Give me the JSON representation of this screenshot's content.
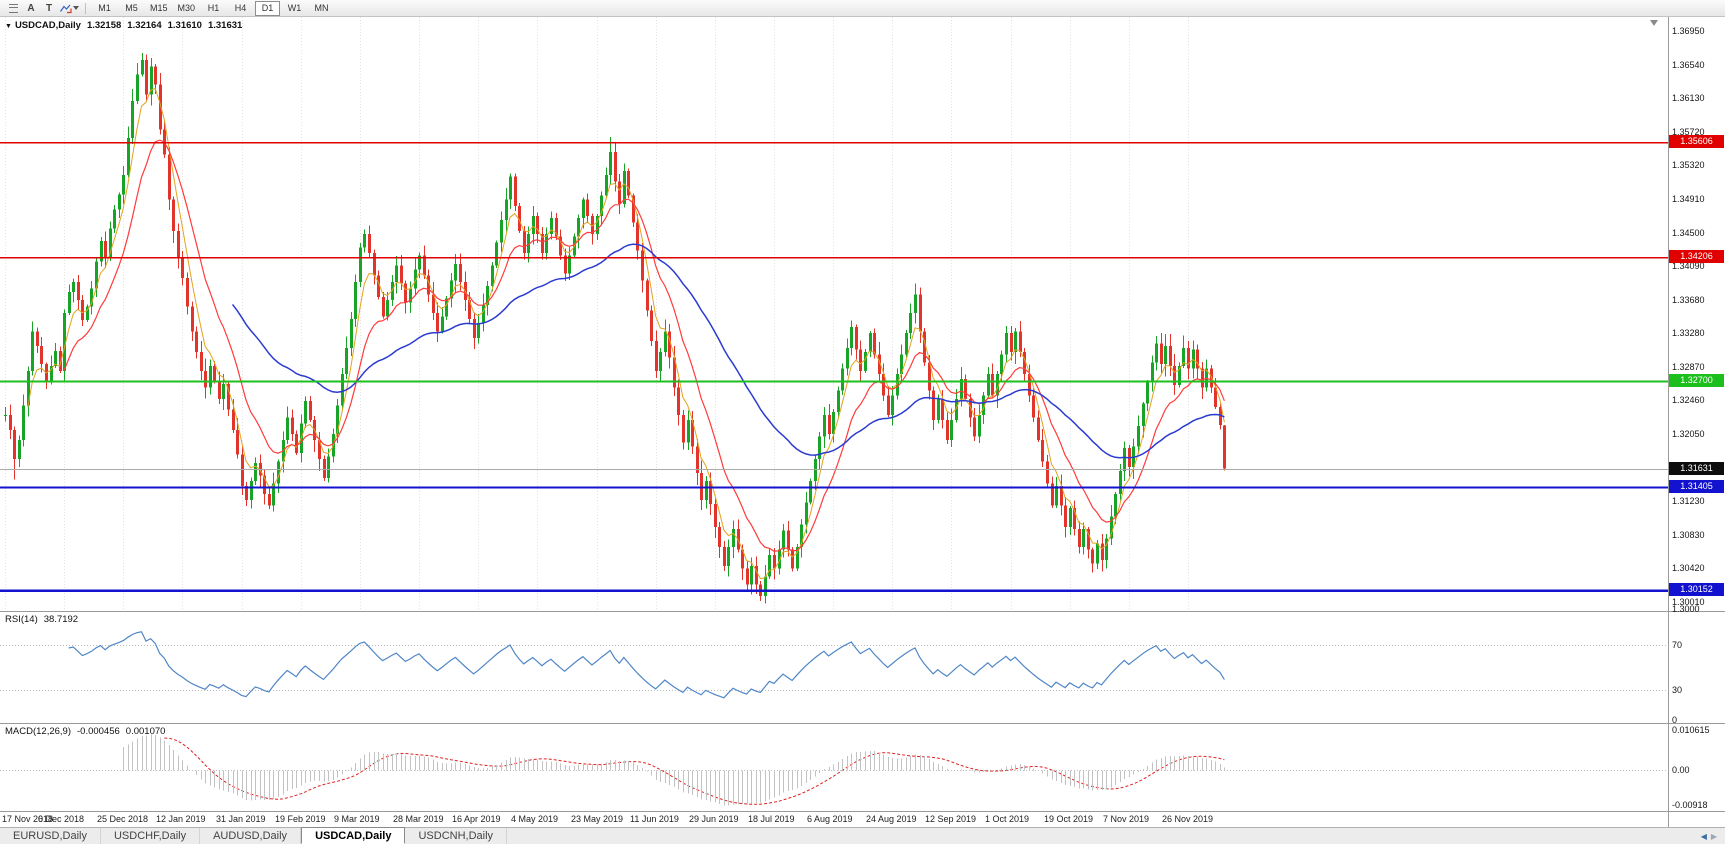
{
  "toolbar": {
    "icons": [
      {
        "name": "menu-icon"
      },
      {
        "name": "text-a-button",
        "glyph": "A"
      },
      {
        "name": "text-t-button",
        "glyph": "T"
      },
      {
        "name": "cursor-arrows-button"
      },
      {
        "name": "dropdown-caret-icon"
      }
    ],
    "timeframes": [
      "M1",
      "M5",
      "M15",
      "M30",
      "H1",
      "H4",
      "D1",
      "W1",
      "MN"
    ],
    "active_timeframe": "D1"
  },
  "chart": {
    "symbol_with_tf": "USDCAD,Daily",
    "collapse_glyph": "▼"
  },
  "chart_data": {
    "type": "candlestick",
    "symbol": "USDCAD",
    "period": "Daily",
    "last_bar": {
      "open": "1.32158",
      "high": "1.32164",
      "low": "1.31610",
      "close": "1.31631"
    },
    "closes": [
      1.3228,
      1.321,
      1.3175,
      1.3198,
      1.324,
      1.3282,
      1.333,
      1.3312,
      1.329,
      1.3268,
      1.3288,
      1.3306,
      1.3282,
      1.3352,
      1.3378,
      1.339,
      1.3368,
      1.3344,
      1.336,
      1.3382,
      1.3415,
      1.344,
      1.342,
      1.3455,
      1.3478,
      1.3496,
      1.352,
      1.3565,
      1.361,
      1.3642,
      1.366,
      1.3618,
      1.3652,
      1.363,
      1.3575,
      1.3545,
      1.349,
      1.3452,
      1.342,
      1.3395,
      1.336,
      1.333,
      1.3305,
      1.3282,
      1.3262,
      1.3288,
      1.327,
      1.3248,
      1.3266,
      1.3235,
      1.321,
      1.318,
      1.3142,
      1.3125,
      1.3148,
      1.317,
      1.3155,
      1.3132,
      1.3118,
      1.3145,
      1.3172,
      1.3198,
      1.3225,
      1.3205,
      1.3182,
      1.3218,
      1.3245,
      1.3222,
      1.3198,
      1.3175,
      1.3152,
      1.3178,
      1.3205,
      1.324,
      1.3278,
      1.331,
      1.3345,
      1.339,
      1.3432,
      1.3448,
      1.3425,
      1.3398,
      1.3372,
      1.3348,
      1.3368,
      1.339,
      1.341,
      1.3388,
      1.3365,
      1.3382,
      1.3405,
      1.3422,
      1.3398,
      1.3375,
      1.3352,
      1.333,
      1.3348,
      1.337,
      1.3392,
      1.3412,
      1.339,
      1.3368,
      1.3345,
      1.3322,
      1.334,
      1.3362,
      1.3385,
      1.341,
      1.3438,
      1.3465,
      1.349,
      1.3518,
      1.3482,
      1.3452,
      1.3425,
      1.3448,
      1.347,
      1.3448,
      1.3425,
      1.3448,
      1.3468,
      1.3445,
      1.3422,
      1.34,
      1.3422,
      1.3445,
      1.3468,
      1.349,
      1.347,
      1.3448,
      1.347,
      1.3495,
      1.352,
      1.3548,
      1.3512,
      1.3485,
      1.3525,
      1.3495,
      1.3462,
      1.3428,
      1.3392,
      1.3355,
      1.3318,
      1.3282,
      1.3305,
      1.333,
      1.3298,
      1.3262,
      1.3228,
      1.3195,
      1.3222,
      1.319,
      1.3158,
      1.3125,
      1.3148,
      1.312,
      1.3092,
      1.3068,
      1.3045,
      1.3068,
      1.309,
      1.3065,
      1.3042,
      1.3022,
      1.3045,
      1.3022,
      1.3008,
      1.3032,
      1.3058,
      1.3042,
      1.3065,
      1.3088,
      1.3065,
      1.3042,
      1.3068,
      1.3095,
      1.3122,
      1.3148,
      1.3175,
      1.3202,
      1.3228,
      1.3205,
      1.3232,
      1.3258,
      1.3285,
      1.331,
      1.3335,
      1.3308,
      1.3282,
      1.3305,
      1.3328,
      1.3302,
      1.3278,
      1.3252,
      1.3228,
      1.3252,
      1.3278,
      1.3302,
      1.3328,
      1.3352,
      1.3375,
      1.333,
      1.3292,
      1.3258,
      1.3222,
      1.3248,
      1.3222,
      1.3198,
      1.3222,
      1.3248,
      1.3272,
      1.3248,
      1.3225,
      1.3202,
      1.3228,
      1.3252,
      1.3278,
      1.3252,
      1.3278,
      1.3302,
      1.3328,
      1.3305,
      1.333,
      1.3305,
      1.3278,
      1.3252,
      1.3225,
      1.3198,
      1.3172,
      1.3145,
      1.3118,
      1.3142,
      1.3118,
      1.3092,
      1.3115,
      1.309,
      1.3068,
      1.309,
      1.3065,
      1.3048,
      1.3072,
      1.3052,
      1.3078,
      1.3105,
      1.3132,
      1.316,
      1.3188,
      1.3165,
      1.319,
      1.3215,
      1.3242,
      1.3268,
      1.3292,
      1.3315,
      1.329,
      1.3312,
      1.3288,
      1.3265,
      1.3288,
      1.331,
      1.3285,
      1.3308,
      1.3285,
      1.3262,
      1.3285,
      1.3262,
      1.3238,
      1.3216,
      1.31631
    ],
    "wick_overrides": {
      "2": {
        "low": 1.315
      },
      "30": {
        "high": 1.3668
      },
      "111": {
        "high": 1.3522
      },
      "133": {
        "high": 1.3566
      },
      "166": {
        "low": 1.3002
      }
    },
    "price_axis_labels": [
      "1.36950",
      "1.36540",
      "1.36130",
      "1.35720",
      "1.35320",
      "1.34910",
      "1.34500",
      "1.34090",
      "1.33680",
      "1.33280",
      "1.32870",
      "1.32460",
      "1.32050",
      "1.31640",
      "1.31230",
      "1.30830",
      "1.30420",
      "1.30010"
    ],
    "price_axis_bottom_label": "1.3000",
    "x_axis_labels": [
      "17 Nov 2018",
      "6 Dec 2018",
      "25 Dec 2018",
      "12 Jan 2019",
      "31 Jan 2019",
      "19 Feb 2019",
      "9 Mar 2019",
      "28 Mar 2019",
      "16 Apr 2019",
      "4 May 2019",
      "23 May 2019",
      "11 Jun 2019",
      "29 Jun 2019",
      "18 Jul 2019",
      "6 Aug 2019",
      "24 Aug 2019",
      "12 Sep 2019",
      "1 Oct 2019",
      "19 Oct 2019",
      "7 Nov 2019",
      "26 Nov 2019"
    ],
    "bars_per_gridline": 13,
    "candle_colors": {
      "up": "#17a427",
      "down": "#e3342c"
    },
    "moving_averages": [
      {
        "name": "fast-ma",
        "period": 5,
        "color": "#e2a31e",
        "width": 1
      },
      {
        "name": "mid-ma",
        "period": 13,
        "color": "#ff3b3b",
        "width": 1.2
      },
      {
        "name": "slow-ma",
        "period": 50,
        "color": "#2b3bd0",
        "width": 1.5
      }
    ],
    "horizontal_lines": [
      {
        "label": "1.35606",
        "price": 1.35606,
        "color": "#e00000",
        "width": 1.5
      },
      {
        "label": "1.34206",
        "price": 1.34206,
        "color": "#e00000",
        "width": 1.5
      },
      {
        "label": "1.32700",
        "price": 1.327,
        "color": "#1dbf1d",
        "width": 2
      },
      {
        "label": "1.31405",
        "price": 1.31405,
        "color": "#1212cf",
        "width": 2
      },
      {
        "label": "1.30152",
        "price": 1.30152,
        "color": "#1212cf",
        "width": 2.5
      }
    ],
    "current_price": {
      "label": "1.31631",
      "price": 1.31631,
      "badge_color": "#0d0d0d",
      "line_color": "#aaaaaa"
    },
    "rsi": {
      "label": "RSI(14)",
      "value": "38.7192",
      "period": 14,
      "levels": [
        70,
        30
      ],
      "axis_labels": [
        "70",
        "30",
        "0"
      ],
      "color": "#4f86c6"
    },
    "macd": {
      "label": "MACD(12,26,9)",
      "value_main": "-0.000456",
      "value_signal": "0.001070",
      "fast": 12,
      "slow": 26,
      "signal": 9,
      "axis_labels": [
        "0.010615",
        "0.00",
        "-0.00918"
      ],
      "range": [
        -0.00918,
        0.010615
      ],
      "histogram_color": "#c2c2c2",
      "signal_color": "#dd2222"
    }
  },
  "tabs": {
    "items": [
      "EURUSD,Daily",
      "USDCHF,Daily",
      "AUDUSD,Daily",
      "USDCAD,Daily",
      "USDCNH,Daily"
    ],
    "active": "USDCAD,Daily",
    "scroll_left_glyph": "◀",
    "scroll_right_glyph": "▶"
  }
}
